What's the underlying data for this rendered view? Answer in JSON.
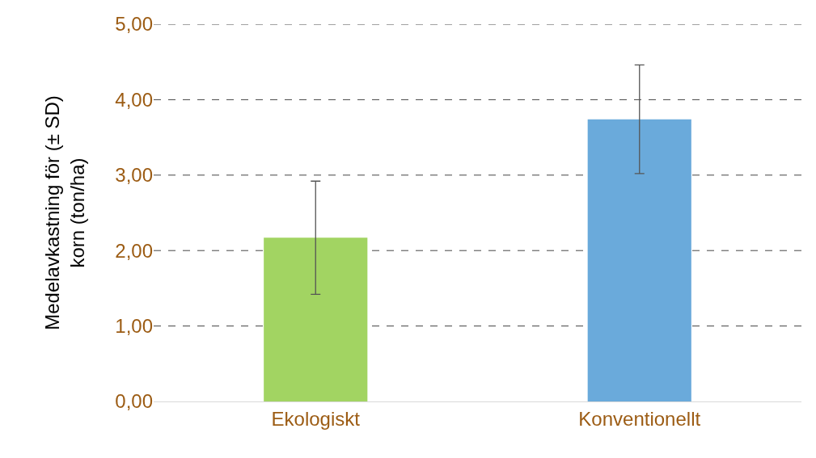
{
  "chart_data": {
    "type": "bar",
    "ylabel": "Medelavkastning för (± SD)\nkorn (ton/ha)",
    "categories": [
      "Ekologiskt",
      "Konventionellt"
    ],
    "values": [
      2.17,
      3.74
    ],
    "errors": [
      0.75,
      0.72
    ],
    "colors": [
      "#a2d462",
      "#6aaadb"
    ],
    "ylim": [
      0,
      5
    ],
    "yticks": [
      {
        "value": 0,
        "label": "0,00"
      },
      {
        "value": 1,
        "label": "1,00"
      },
      {
        "value": 2,
        "label": "2,00"
      },
      {
        "value": 3,
        "label": "3,00"
      },
      {
        "value": 4,
        "label": "4,00"
      },
      {
        "value": 5,
        "label": "5,00"
      }
    ],
    "grid": "y"
  }
}
